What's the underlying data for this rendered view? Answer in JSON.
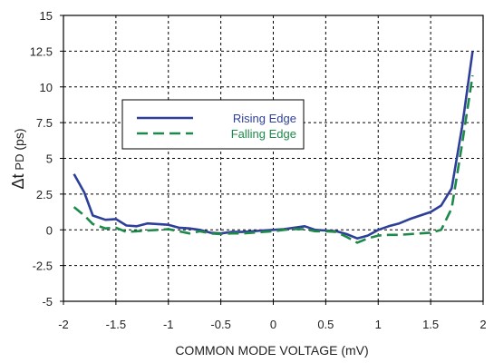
{
  "chart_data": {
    "type": "line",
    "xlabel": "COMMON MODE VOLTAGE (mV)",
    "ylabel": {
      "delta": "Δt",
      "sub": "PD",
      "unit": " (ps)"
    },
    "xlim": [
      -2,
      2
    ],
    "ylim": [
      -5,
      15
    ],
    "x_ticks": [
      "-2",
      "-1.5",
      "-1",
      "-0.5",
      "0",
      "0.5",
      "1",
      "1.5",
      "2"
    ],
    "x_tick_values": [
      -2,
      -1.5,
      -1,
      -0.5,
      0,
      0.5,
      1,
      1.5,
      2
    ],
    "y_ticks": [
      "-5",
      "-2.5",
      "0",
      "2.5",
      "5",
      "7.5",
      "10",
      "12.5",
      "15"
    ],
    "y_tick_values": [
      -5,
      -2.5,
      0,
      2.5,
      5,
      7.5,
      10,
      12.5,
      15
    ],
    "grid": true,
    "legend_position": "upper-left",
    "series": [
      {
        "name": "Rising Edge",
        "color": "#2e3f9a",
        "style": "solid",
        "points": [
          [
            -1.9,
            3.9
          ],
          [
            -1.8,
            2.6
          ],
          [
            -1.72,
            1.0
          ],
          [
            -1.6,
            0.7
          ],
          [
            -1.5,
            0.75
          ],
          [
            -1.4,
            0.3
          ],
          [
            -1.3,
            0.25
          ],
          [
            -1.2,
            0.45
          ],
          [
            -1.1,
            0.4
          ],
          [
            -1.0,
            0.35
          ],
          [
            -0.9,
            0.15
          ],
          [
            -0.8,
            0.1
          ],
          [
            -0.7,
            0.0
          ],
          [
            -0.6,
            -0.2
          ],
          [
            -0.5,
            -0.25
          ],
          [
            -0.4,
            -0.15
          ],
          [
            -0.3,
            -0.15
          ],
          [
            -0.2,
            -0.1
          ],
          [
            -0.1,
            -0.05
          ],
          [
            0.0,
            0.0
          ],
          [
            0.1,
            0.05
          ],
          [
            0.2,
            0.15
          ],
          [
            0.3,
            0.25
          ],
          [
            0.4,
            0.0
          ],
          [
            0.5,
            -0.05
          ],
          [
            0.6,
            -0.1
          ],
          [
            0.7,
            -0.3
          ],
          [
            0.8,
            -0.6
          ],
          [
            0.9,
            -0.4
          ],
          [
            1.0,
            0.0
          ],
          [
            1.1,
            0.25
          ],
          [
            1.2,
            0.45
          ],
          [
            1.3,
            0.75
          ],
          [
            1.4,
            1.0
          ],
          [
            1.5,
            1.25
          ],
          [
            1.6,
            1.7
          ],
          [
            1.7,
            2.9
          ],
          [
            1.8,
            7.2
          ],
          [
            1.9,
            12.5
          ]
        ]
      },
      {
        "name": "Falling Edge",
        "color": "#1e8a4a",
        "style": "dashed",
        "points": [
          [
            -1.9,
            1.6
          ],
          [
            -1.8,
            1.0
          ],
          [
            -1.72,
            0.4
          ],
          [
            -1.6,
            0.1
          ],
          [
            -1.5,
            0.15
          ],
          [
            -1.4,
            -0.15
          ],
          [
            -1.3,
            -0.1
          ],
          [
            -1.2,
            -0.05
          ],
          [
            -1.1,
            0.0
          ],
          [
            -1.0,
            0.05
          ],
          [
            -0.9,
            -0.1
          ],
          [
            -0.8,
            -0.25
          ],
          [
            -0.7,
            -0.1
          ],
          [
            -0.6,
            -0.25
          ],
          [
            -0.5,
            -0.3
          ],
          [
            -0.4,
            -0.25
          ],
          [
            -0.3,
            -0.25
          ],
          [
            -0.2,
            -0.2
          ],
          [
            -0.1,
            -0.15
          ],
          [
            0.0,
            -0.1
          ],
          [
            0.1,
            0.0
          ],
          [
            0.2,
            0.05
          ],
          [
            0.3,
            0.05
          ],
          [
            0.4,
            -0.1
          ],
          [
            0.5,
            -0.1
          ],
          [
            0.6,
            -0.15
          ],
          [
            0.7,
            -0.5
          ],
          [
            0.8,
            -0.9
          ],
          [
            0.9,
            -0.6
          ],
          [
            1.0,
            -0.4
          ],
          [
            1.1,
            -0.35
          ],
          [
            1.2,
            -0.35
          ],
          [
            1.3,
            -0.3
          ],
          [
            1.4,
            -0.25
          ],
          [
            1.5,
            -0.2
          ],
          [
            1.6,
            0.0
          ],
          [
            1.7,
            1.5
          ],
          [
            1.8,
            6.0
          ],
          [
            1.9,
            10.8
          ]
        ]
      }
    ]
  }
}
